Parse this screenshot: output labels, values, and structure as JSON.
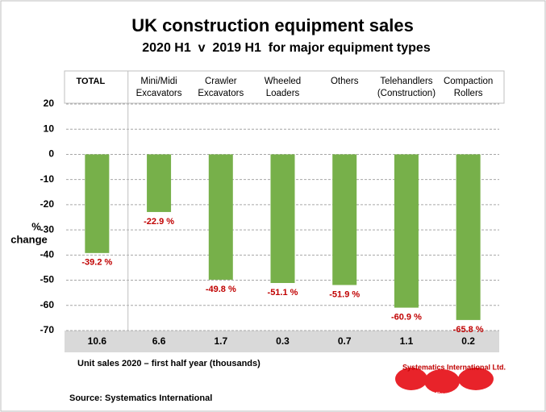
{
  "chart_data": {
    "type": "bar",
    "title": "UK construction equipment sales",
    "subtitle": "2020 H1  v  2019 H1  for major equipment types",
    "y_label": [
      "%",
      "change"
    ],
    "categories": [
      [
        "TOTAL"
      ],
      [
        "Mini/Midi",
        "Excavators"
      ],
      [
        "Crawler",
        "Excavators"
      ],
      [
        "Wheeled",
        "Loaders"
      ],
      [
        "Others"
      ],
      [
        "Telehandlers",
        "(Construction)"
      ],
      [
        "Compaction",
        "Rollers"
      ]
    ],
    "values": [
      -39.2,
      -22.9,
      -49.8,
      -51.1,
      -51.9,
      -60.9,
      -65.8
    ],
    "value_labels": [
      "-39.2 %",
      "-22.9 %",
      "-49.8 %",
      "-51.1 %",
      "-51.9 %",
      "-60.9 %",
      "-65.8 %"
    ],
    "color": "#77b04a",
    "value_label_color": "#c00000",
    "ylim": [
      -70,
      20
    ],
    "yticks": [
      20,
      10,
      0,
      -10,
      -20,
      -30,
      -40,
      -50,
      -60,
      -70
    ],
    "grid": true,
    "unit_sales": [
      10.6,
      6.6,
      1.7,
      0.3,
      0.7,
      1.1,
      0.2
    ],
    "unit_sales_label": "Unit sales 2020 – first half year (thousands)",
    "source": "Source: Systematics International",
    "logo": {
      "name": "Systematics International Ltd.",
      "tagline": "Adding Value to Data"
    }
  }
}
